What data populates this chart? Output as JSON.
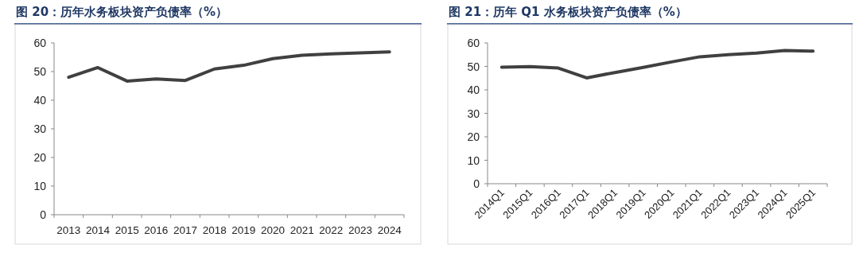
{
  "chart_data": [
    {
      "type": "line",
      "title": "图 20：历年水务板块资产负债率（%）",
      "categories": [
        "2013",
        "2014",
        "2015",
        "2016",
        "2017",
        "2018",
        "2019",
        "2020",
        "2021",
        "2022",
        "2023",
        "2024"
      ],
      "series": [
        {
          "color": "#404040",
          "values": [
            48.0,
            51.4,
            46.7,
            47.4,
            46.9,
            50.9,
            52.2,
            54.5,
            55.7,
            56.2,
            56.5,
            56.9
          ]
        }
      ],
      "ylim": [
        0,
        60
      ],
      "yticks": [
        0,
        10,
        20,
        30,
        40,
        50,
        60
      ]
    },
    {
      "type": "line",
      "title": "图 21：历年 Q1 水务板块资产负债率（%）",
      "categories": [
        "2014Q1",
        "2015Q1",
        "2016Q1",
        "2017Q1",
        "2018Q1",
        "2019Q1",
        "2020Q1",
        "2021Q1",
        "2022Q1",
        "2023Q1",
        "2024Q1",
        "2025Q1"
      ],
      "series": [
        {
          "color": "#404040",
          "values": [
            49.7,
            49.9,
            49.3,
            45.1,
            47.4,
            49.6,
            51.9,
            54.1,
            55.0,
            55.7,
            56.8,
            56.5
          ]
        }
      ],
      "ylim": [
        0,
        60
      ],
      "yticks": [
        0,
        10,
        20,
        30,
        40,
        50,
        60
      ]
    }
  ]
}
